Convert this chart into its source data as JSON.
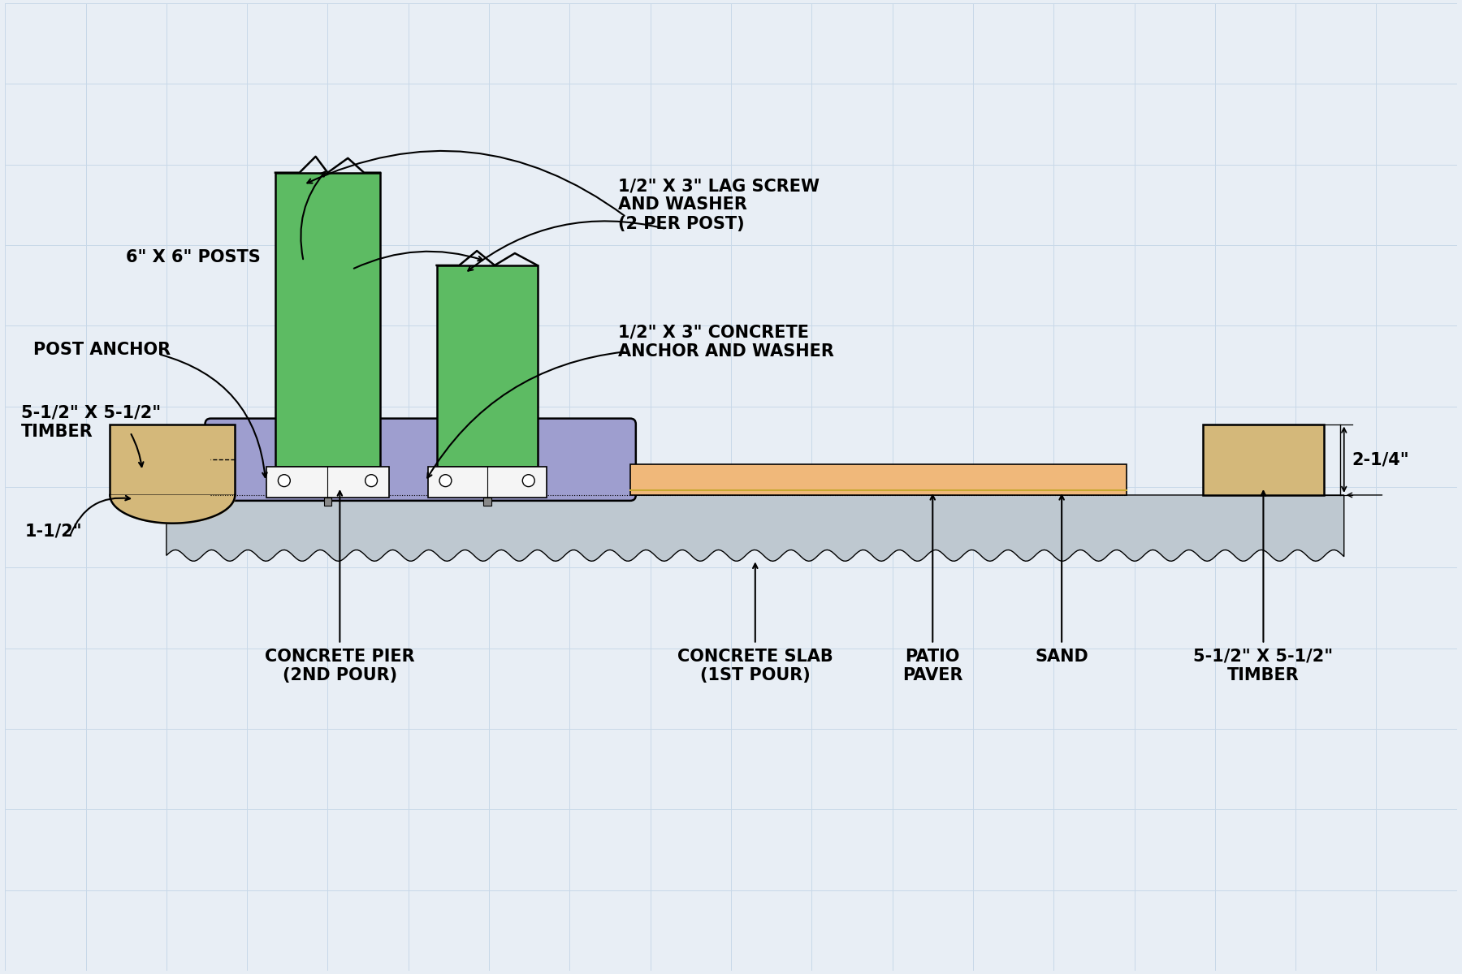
{
  "bg_color": "#e8eef5",
  "grid_color": "#c8d8e8",
  "colors": {
    "post_green": "#5dbb63",
    "pier_purple": "#9e9ecf",
    "slab_gray": "#bec8d0",
    "paver_orange": "#f0b87a",
    "paver_sand": "#e8d060",
    "timber_tan": "#d4b87a",
    "anchor_white": "#f5f5f5",
    "outline": "#000000",
    "white": "#ffffff"
  },
  "labels": {
    "posts": "6\" X 6\" POSTS",
    "post_anchor": "POST ANCHOR",
    "timber_left": "5-1/2\" X 5-1/2\"\nTIMBER",
    "lag_screw": "1/2\" X 3\" LAG SCREW\nAND WASHER\n(2 PER POST)",
    "concrete_anchor": "1/2\" X 3\" CONCRETE\nANCHOR AND WASHER",
    "pier": "CONCRETE PIER\n(2ND POUR)",
    "slab": "CONCRETE SLAB\n(1ST POUR)",
    "paver": "PATIO\nPAVER",
    "sand": "SAND",
    "timber_right": "5-1/2\" X 5-1/2\"\nTIMBER",
    "dim_left": "1-1/2\"",
    "dim_right": "2-1/4\""
  }
}
